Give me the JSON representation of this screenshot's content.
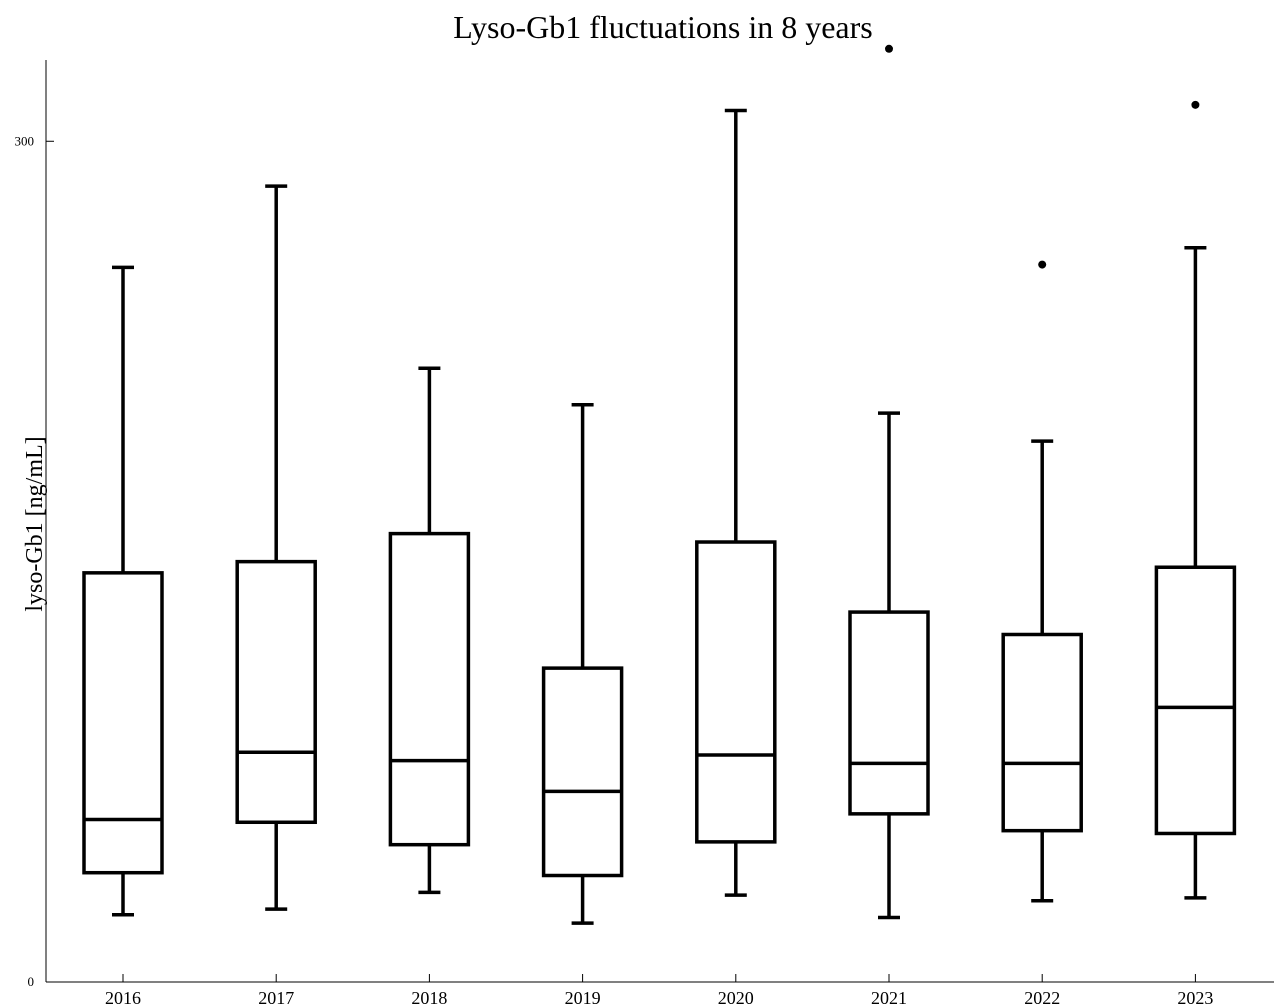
{
  "chart_data": {
    "type": "box",
    "title": "Lyso-Gb1 fluctuations in 8 years",
    "xlabel": "",
    "ylabel": "lyso-Gb1 [ng/mL]",
    "ylim": [
      0,
      329
    ],
    "yticks": [
      0,
      300
    ],
    "yticks_labels": [
      "0",
      "300"
    ],
    "grid": false,
    "categories": [
      "2016",
      "2017",
      "2018",
      "2019",
      "2020",
      "2021",
      "2022",
      "2023"
    ],
    "boxes": [
      {
        "whisker_low": 24,
        "q1": 39,
        "median": 58,
        "q3": 146,
        "whisker_high": 255,
        "outliers": []
      },
      {
        "whisker_low": 26,
        "q1": 57,
        "median": 82,
        "q3": 150,
        "whisker_high": 284,
        "outliers": []
      },
      {
        "whisker_low": 32,
        "q1": 49,
        "median": 79,
        "q3": 160,
        "whisker_high": 219,
        "outliers": []
      },
      {
        "whisker_low": 21,
        "q1": 38,
        "median": 68,
        "q3": 112,
        "whisker_high": 206,
        "outliers": []
      },
      {
        "whisker_low": 31,
        "q1": 50,
        "median": 81,
        "q3": 157,
        "whisker_high": 311,
        "outliers": []
      },
      {
        "whisker_low": 23,
        "q1": 60,
        "median": 78,
        "q3": 132,
        "whisker_high": 203,
        "outliers": [
          333
        ]
      },
      {
        "whisker_low": 29,
        "q1": 54,
        "median": 78,
        "q3": 124,
        "whisker_high": 193,
        "outliers": [
          256
        ]
      },
      {
        "whisker_low": 30,
        "q1": 53,
        "median": 98,
        "q3": 148,
        "whisker_high": 262,
        "outliers": [
          313
        ]
      }
    ]
  }
}
